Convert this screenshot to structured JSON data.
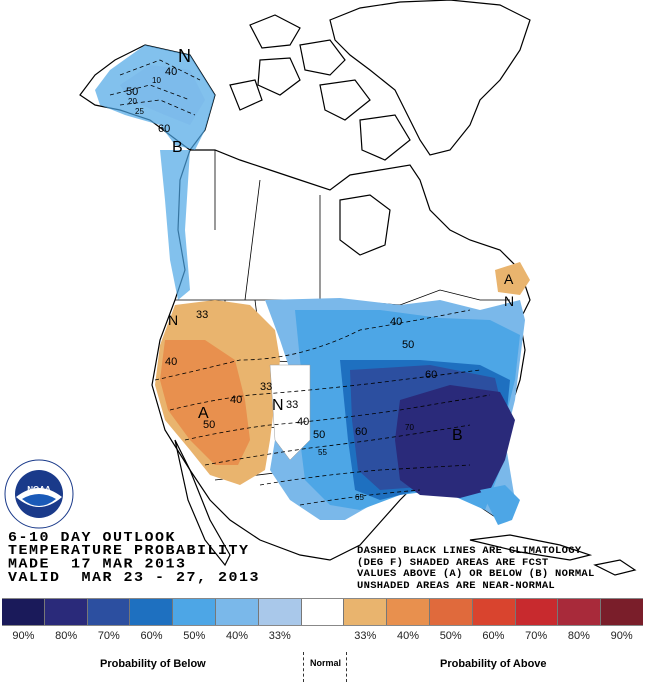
{
  "outlook": {
    "line1": "6-10 DAY OUTLOOK",
    "line2": "TEMPERATURE PROBABILITY",
    "line3": "MADE  17 MAR 2013",
    "line4": "VALID  MAR 23 - 27, 2013"
  },
  "notes": {
    "line1": "DASHED BLACK LINES ARE CLIMATOLOGY",
    "line2": "(DEG F) SHADED AREAS ARE FCST",
    "line3": "VALUES ABOVE (A) OR BELOW (B) NORMAL",
    "line4": "UNSHADED AREAS ARE NEAR-NORMAL"
  },
  "logo": {
    "text": "NOAA",
    "ring_text": "NATIONAL OCEANIC AND ATMOSPHERIC ADMINISTRATION",
    "ring_text_bottom": "U.S. DEPARTMENT OF COMMERCE"
  },
  "scale": {
    "colors": [
      "#1a1a5a",
      "#2a2a7a",
      "#2c4fa0",
      "#1e70c0",
      "#4da6e6",
      "#7ab8ea",
      "#a9c8ea",
      "#ffffff",
      "#e9b46e",
      "#e8904e",
      "#e06a3c",
      "#d9442e",
      "#c82a2e",
      "#a82a3a",
      "#7a1e2a"
    ],
    "labels": [
      "90%",
      "80%",
      "70%",
      "60%",
      "50%",
      "40%",
      "33%",
      "",
      "33%",
      "40%",
      "50%",
      "60%",
      "70%",
      "80%",
      "90%"
    ]
  },
  "bottom": {
    "below": "Probability of Below",
    "normal": "Normal",
    "above": "Probability of Above"
  },
  "map_labels": {
    "alaska_N": "N",
    "alaska_B": "B",
    "alaska_40": "40",
    "alaska_10": "10",
    "alaska_50": "50",
    "alaska_20": "20",
    "alaska_25": "25",
    "alaska_60": "60",
    "west_N": "N",
    "west_33": "33",
    "west_40": "40",
    "west_A": "A",
    "west_50": "50",
    "west_40b": "40",
    "center_N": "N",
    "center_33": "33",
    "center_33b": "33",
    "east_40": "40",
    "east_50": "50",
    "east_60": "60",
    "south_40": "40",
    "south_50": "50",
    "south_55": "55",
    "south_60": "60",
    "south_65": "65",
    "south_70": "70",
    "southeast_B": "B",
    "northeast_A": "A",
    "northeast_N": "N"
  }
}
